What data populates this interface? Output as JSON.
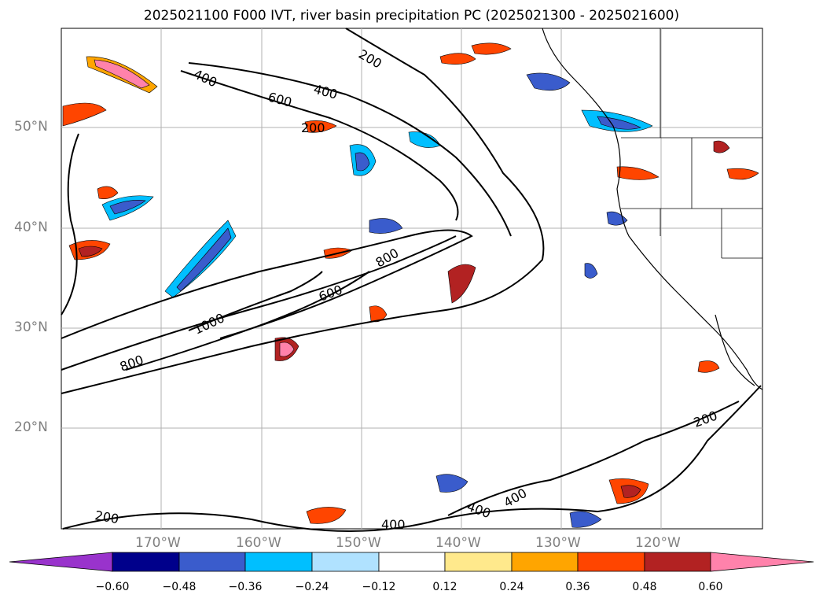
{
  "title": "2025021100 F000 IVT, river basin precipitation PC (2025021300 - 2025021600)",
  "map": {
    "lat_labels": [
      "50°N",
      "40°N",
      "30°N",
      "20°N"
    ],
    "lon_labels": [
      "170°W",
      "160°W",
      "150°W",
      "140°W",
      "130°W",
      "120°W"
    ],
    "ivt_contour_labels": [
      "200",
      "400",
      "600",
      "800",
      "1000"
    ]
  },
  "colorbar": {
    "ticks": [
      "−0.60",
      "−0.48",
      "−0.36",
      "−0.24",
      "−0.12",
      "0.12",
      "0.24",
      "0.36",
      "0.48",
      "0.60"
    ],
    "colors": [
      "#9933cc",
      "#00008b",
      "#3a5ccc",
      "#00bfff",
      "#b0e2ff",
      "#ffffff",
      "#ffe98c",
      "#ffa500",
      "#ff4500",
      "#b22222",
      "#ff82ab"
    ]
  }
}
